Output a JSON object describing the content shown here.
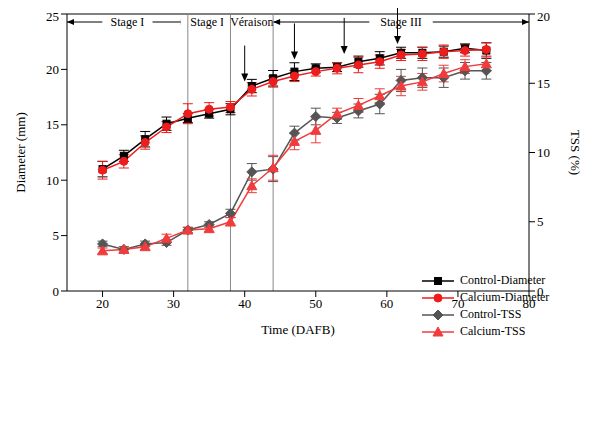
{
  "chart_data": {
    "type": "line",
    "xlabel": "Time (DAFB)",
    "ylabel": "Diameter (mm)",
    "y2label": "TSS (%)",
    "x": [
      20,
      23,
      26,
      29,
      32,
      35,
      38,
      41,
      44,
      47,
      50,
      53,
      56,
      59,
      62,
      65,
      68,
      71,
      74
    ],
    "xlim": [
      15,
      80
    ],
    "xticks": [
      20,
      30,
      40,
      50,
      60,
      70,
      80
    ],
    "ylim": [
      0,
      25
    ],
    "yticks": [
      0,
      5,
      10,
      15,
      20,
      25
    ],
    "y2lim": [
      0,
      20
    ],
    "y2ticks": [
      0,
      5,
      10,
      15,
      20
    ],
    "grid": false,
    "legend": "lower right",
    "series": [
      {
        "name": "Control-Diameter",
        "color": "#000000",
        "marker": "square",
        "values": [
          11.0,
          12.2,
          13.7,
          15.1,
          15.6,
          16.0,
          16.4,
          18.5,
          19.2,
          19.8,
          20.1,
          20.2,
          20.7,
          21.0,
          21.5,
          21.5,
          21.6,
          21.9,
          21.7
        ],
        "errors": [
          0.7,
          0.5,
          0.7,
          0.6,
          0.4,
          0.4,
          0.5,
          0.6,
          0.7,
          0.8,
          0.4,
          0.4,
          0.5,
          0.6,
          0.5,
          0.5,
          0.5,
          0.4,
          0.7
        ]
      },
      {
        "name": "Calcium-Diameter",
        "color": "#ee1c1c",
        "marker": "circle",
        "values": [
          10.9,
          11.7,
          13.4,
          14.8,
          16.0,
          16.4,
          16.6,
          18.2,
          18.9,
          19.4,
          19.8,
          20.1,
          20.4,
          20.7,
          21.3,
          21.4,
          21.6,
          21.7,
          21.8
        ],
        "errors": [
          0.8,
          0.6,
          0.6,
          0.5,
          0.9,
          0.6,
          0.5,
          0.6,
          0.5,
          0.5,
          0.4,
          0.5,
          0.7,
          0.6,
          0.5,
          0.6,
          0.6,
          0.5,
          0.6
        ]
      },
      {
        "name": "Control-TSS",
        "color": "#555555",
        "marker": "diamond",
        "axis": "y2",
        "values": [
          3.4,
          3.0,
          3.4,
          3.5,
          4.4,
          4.8,
          5.6,
          8.6,
          8.8,
          11.4,
          12.6,
          12.5,
          13.0,
          13.5,
          15.2,
          15.4,
          15.4,
          15.9,
          15.9
        ],
        "errors": [
          0.2,
          0.2,
          0.2,
          0.2,
          0.2,
          0.2,
          0.3,
          0.6,
          0.9,
          0.5,
          0.6,
          0.4,
          0.5,
          0.7,
          0.8,
          0.7,
          0.7,
          0.6,
          0.6
        ]
      },
      {
        "name": "Calcium-TSS",
        "color": "#f03c3c",
        "marker": "triangle",
        "axis": "y2",
        "values": [
          2.9,
          3.0,
          3.2,
          3.8,
          4.4,
          4.5,
          5.0,
          7.6,
          8.9,
          10.8,
          11.6,
          12.8,
          13.4,
          14.1,
          14.8,
          15.1,
          15.7,
          16.2,
          16.4
        ],
        "errors": [
          0.2,
          0.2,
          0.2,
          0.3,
          0.2,
          0.2,
          0.3,
          0.5,
          0.9,
          0.6,
          0.9,
          0.4,
          0.5,
          0.5,
          0.7,
          0.6,
          0.6,
          0.5,
          0.5
        ]
      }
    ],
    "stages": [
      {
        "label": "Stage I",
        "start": 15,
        "end": 32
      },
      {
        "label": "Stage II",
        "start": 32,
        "end": 38
      },
      {
        "label": "Véraison",
        "start": 38,
        "end": 44
      },
      {
        "label": "Stage III",
        "start": 44,
        "end": 80
      }
    ],
    "sampling_arrows": [
      {
        "x": 40,
        "y": 18.9
      },
      {
        "x": 47,
        "y": 20.9
      },
      {
        "x": 54,
        "y": 21.4
      },
      {
        "x": 61.5,
        "y": 22.3
      }
    ]
  }
}
